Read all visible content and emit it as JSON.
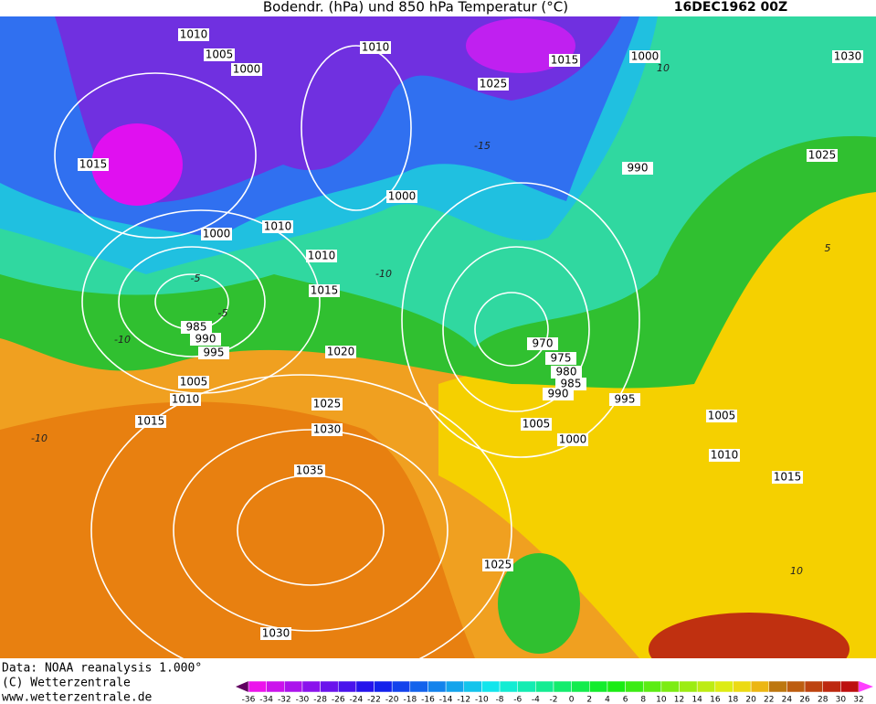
{
  "header": {
    "title": "Bodendr. (hPa) und 850 hPa Temperatur (°C)",
    "date": "16DEC1962 00Z"
  },
  "isobar_labels": [
    1010,
    1005,
    1000,
    1015,
    1010,
    1025,
    1015,
    1000,
    1030,
    1025,
    990,
    1000,
    1010,
    1000,
    1010,
    1015,
    985,
    990,
    995,
    1020,
    970,
    975,
    980,
    985,
    990,
    995,
    1005,
    1010,
    1015,
    1025,
    1030,
    1005,
    1000,
    1005,
    1010,
    1015,
    1035,
    1025,
    1030
  ],
  "isotherm_labels": [
    -15,
    -10,
    -5,
    -5,
    -10,
    -10,
    10,
    5,
    10
  ],
  "footer": {
    "source": "Data: NOAA reanalysis 1.000°",
    "copyright": "(C) Wetterzentrale",
    "url": "www.wetterzentrale.de"
  },
  "colorbar": {
    "ticks": [
      -36,
      -34,
      -32,
      -30,
      -28,
      -26,
      -24,
      -22,
      -20,
      -18,
      -16,
      -14,
      -12,
      -10,
      -8,
      -6,
      -4,
      -2,
      0,
      2,
      4,
      6,
      8,
      10,
      12,
      14,
      16,
      18,
      20,
      22,
      24,
      26,
      28,
      30,
      32
    ]
  }
}
